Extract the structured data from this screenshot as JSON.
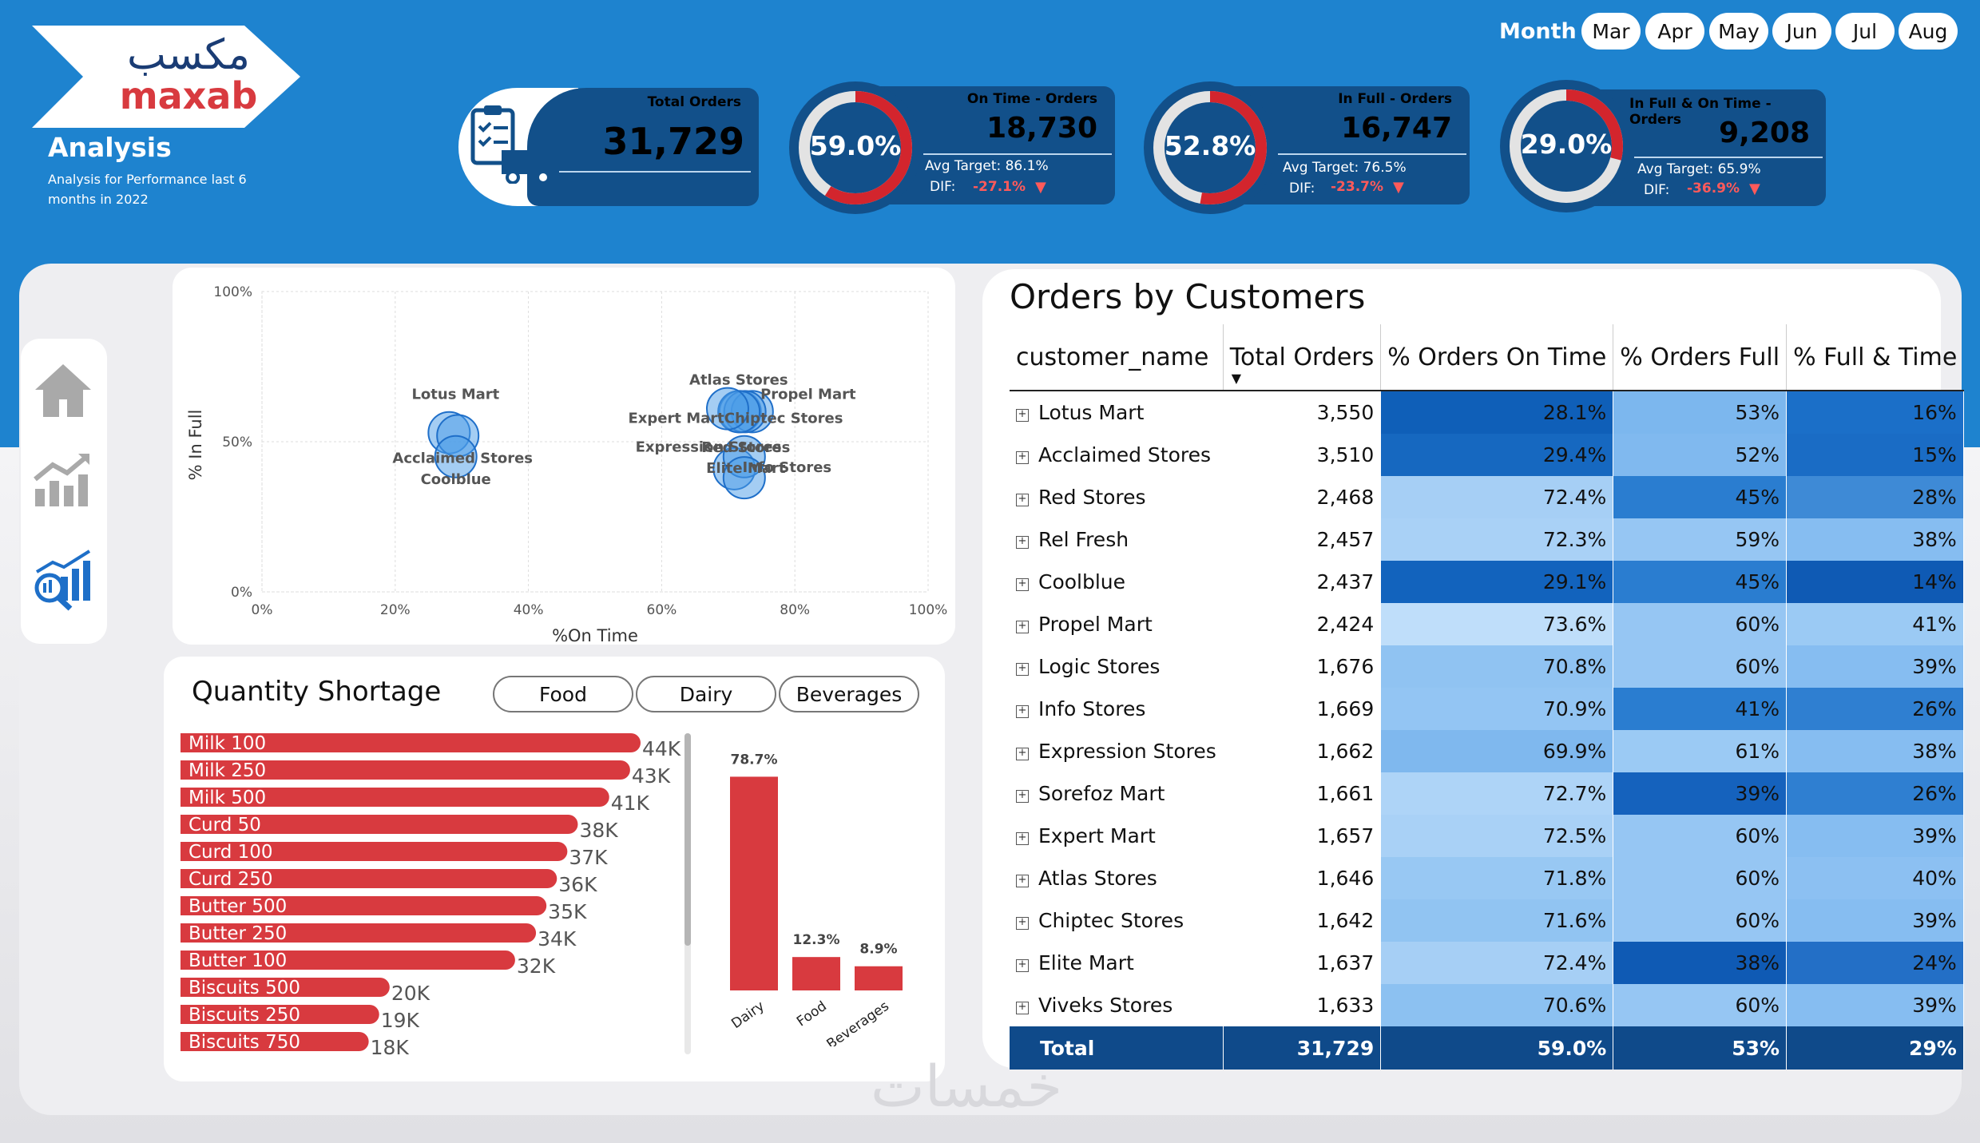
{
  "brand": {
    "logo_arabic": "مكسب",
    "logo_latin": "maxab"
  },
  "header": {
    "title": "Analysis",
    "subtitle": "Analysis for Performance last 6 months in 2022"
  },
  "month_slicer": {
    "label": "Month",
    "months": [
      "Mar",
      "Apr",
      "May",
      "Jun",
      "Jul",
      "Aug"
    ]
  },
  "kpis": {
    "total_orders": {
      "title": "Total Orders",
      "value": "31,729"
    },
    "on_time": {
      "title": "On Time - Orders",
      "value": "18,730",
      "pct": "59.0%",
      "fraction": 0.59,
      "avg_target": "Avg Target: 86.1%",
      "dif_label": "DIF:",
      "dif": "-27.1%"
    },
    "in_full": {
      "title": "In Full - Orders",
      "value": "16,747",
      "pct": "52.8%",
      "fraction": 0.528,
      "avg_target": "Avg Target: 76.5%",
      "dif_label": "DIF:",
      "dif": "-23.7%"
    },
    "in_full_on_time": {
      "title": "In Full & On Time - Orders",
      "value": "9,208",
      "pct": "29.0%",
      "fraction": 0.29,
      "avg_target": "Avg Target: 65.9%",
      "dif_label": "DIF:",
      "dif": "-36.9%"
    }
  },
  "colors": {
    "accent_blue": "#1e83cf",
    "dark_blue": "#12508a",
    "bar_red": "#d83a3f"
  },
  "chart_data": [
    {
      "type": "scatter",
      "xlabel": "%On Time",
      "ylabel": "% In Full",
      "xlim": [
        0,
        100
      ],
      "ylim": [
        0,
        100
      ],
      "x_ticks": [
        "0%",
        "20%",
        "40%",
        "60%",
        "80%",
        "100%"
      ],
      "y_ticks": [
        "0%",
        "50%",
        "100%"
      ],
      "points": [
        {
          "label": "Lotus Mart",
          "x": 28.1,
          "y": 53
        },
        {
          "label": "Acclaimed Stores",
          "x": 29.4,
          "y": 52
        },
        {
          "label": "Coolblue",
          "x": 29.1,
          "y": 45
        },
        {
          "label": "Atlas Stores",
          "x": 71.8,
          "y": 60
        },
        {
          "label": "Propel Mart",
          "x": 73.6,
          "y": 60
        },
        {
          "label": "Expert Mart",
          "x": 72.5,
          "y": 60
        },
        {
          "label": "Chiptec Stores",
          "x": 71.6,
          "y": 60
        },
        {
          "label": "Expression Stores",
          "x": 69.9,
          "y": 61
        },
        {
          "label": "Info Stores",
          "x": 70.9,
          "y": 41
        },
        {
          "label": "Red Stores",
          "x": 72.4,
          "y": 45
        },
        {
          "label": "Elite Mart",
          "x": 72.4,
          "y": 38
        }
      ]
    },
    {
      "type": "bar",
      "title": "Quantity Shortage",
      "orientation": "horizontal",
      "categories": [
        "Milk 100",
        "Milk 250",
        "Milk 500",
        "Curd 50",
        "Curd 100",
        "Curd 250",
        "Butter 500",
        "Butter 250",
        "Butter 100",
        "Biscuits 500",
        "Biscuits 250",
        "Biscuits 750"
      ],
      "values": [
        44000,
        43000,
        41000,
        38000,
        37000,
        36000,
        35000,
        34000,
        32000,
        20000,
        19000,
        18000
      ],
      "value_labels": [
        "44K",
        "43K",
        "41K",
        "38K",
        "37K",
        "36K",
        "35K",
        "34K",
        "32K",
        "20K",
        "19K",
        "18K"
      ]
    },
    {
      "type": "bar",
      "categories": [
        "Dairy",
        "Food",
        "Beverages"
      ],
      "values": [
        78.7,
        12.3,
        8.9
      ],
      "value_labels": [
        "78.7%",
        "12.3%",
        "8.9%"
      ],
      "ylim": [
        0,
        100
      ]
    }
  ],
  "shortage": {
    "title": "Quantity Shortage",
    "filters": [
      "Food",
      "Dairy",
      "Beverages"
    ]
  },
  "orders_table": {
    "title": "Orders by Customers",
    "columns": [
      "customer_name",
      "Total Orders",
      "% Orders On Time",
      "% Orders Full",
      "% Full & Time"
    ],
    "rows": [
      [
        "Lotus Mart",
        "3,550",
        "28.1%",
        "53%",
        "16%"
      ],
      [
        "Acclaimed Stores",
        "3,510",
        "29.4%",
        "52%",
        "15%"
      ],
      [
        "Red Stores",
        "2,468",
        "72.4%",
        "45%",
        "28%"
      ],
      [
        "Rel Fresh",
        "2,457",
        "72.3%",
        "59%",
        "38%"
      ],
      [
        "Coolblue",
        "2,437",
        "29.1%",
        "45%",
        "14%"
      ],
      [
        "Propel Mart",
        "2,424",
        "73.6%",
        "60%",
        "41%"
      ],
      [
        "Logic Stores",
        "1,676",
        "70.8%",
        "60%",
        "39%"
      ],
      [
        "Info Stores",
        "1,669",
        "70.9%",
        "41%",
        "26%"
      ],
      [
        "Expression Stores",
        "1,662",
        "69.9%",
        "61%",
        "38%"
      ],
      [
        "Sorefoz Mart",
        "1,661",
        "72.7%",
        "39%",
        "26%"
      ],
      [
        "Expert Mart",
        "1,657",
        "72.5%",
        "60%",
        "39%"
      ],
      [
        "Atlas Stores",
        "1,646",
        "71.8%",
        "60%",
        "40%"
      ],
      [
        "Chiptec Stores",
        "1,642",
        "71.6%",
        "60%",
        "39%"
      ],
      [
        "Elite Mart",
        "1,637",
        "72.4%",
        "38%",
        "24%"
      ],
      [
        "Viveks Stores",
        "1,633",
        "70.6%",
        "60%",
        "39%"
      ]
    ],
    "cell_colors": [
      [
        "#0f5fb8",
        "#7cb7ee",
        "#1b6fc8"
      ],
      [
        "#1668c0",
        "#80b9ef",
        "#1a6cc5"
      ],
      [
        "#a6cff5",
        "#2a7dd0",
        "#3e8ad6"
      ],
      [
        "#a9d1f6",
        "#96c6f3",
        "#86bdf1"
      ],
      [
        "#1263bd",
        "#2a7dd0",
        "#0f5ab4"
      ],
      [
        "#bfdefa",
        "#96c6f3",
        "#9bcaf4"
      ],
      [
        "#90c3f2",
        "#96c6f3",
        "#86bdf1"
      ],
      [
        "#93c5f3",
        "#2a7dd0",
        "#2f7fd1"
      ],
      [
        "#7fb8ee",
        "#9bcaf4",
        "#86bdf1"
      ],
      [
        "#aed4f7",
        "#1562bd",
        "#2f7fd1"
      ],
      [
        "#a9d1f6",
        "#96c6f3",
        "#86bdf1"
      ],
      [
        "#98c8f3",
        "#96c6f3",
        "#8cc0f2"
      ],
      [
        "#91c4f2",
        "#96c6f3",
        "#86bdf1"
      ],
      [
        "#a6cff5",
        "#0f5ab4",
        "#236fc6"
      ],
      [
        "#8cc1f1",
        "#96c6f3",
        "#86bdf1"
      ]
    ],
    "total": [
      "Total",
      "31,729",
      "59.0%",
      "53%",
      "29%"
    ]
  },
  "watermark": "خمسات"
}
